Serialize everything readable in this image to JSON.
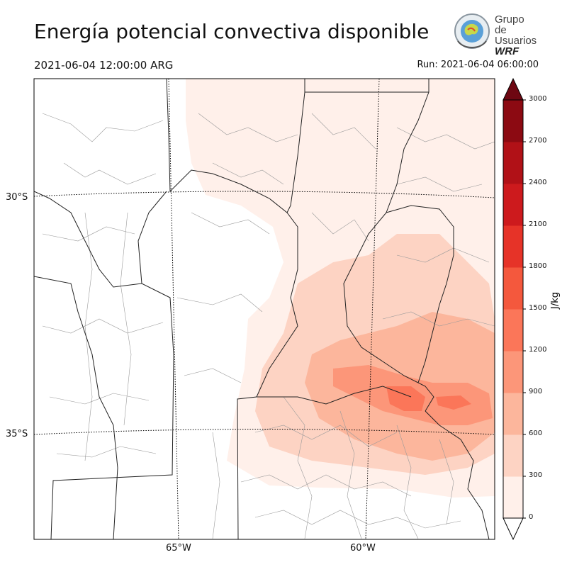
{
  "header": {
    "title": "Energía potencial convectiva disponible",
    "valid_time": "2021-06-04 12:00:00 ARG",
    "run_time": "Run: 2021-06-04 06:00:00"
  },
  "logo": {
    "line1": "Grupo de",
    "line2": "Usuarios",
    "line3": "WRF"
  },
  "map": {
    "lat_labels": [
      "30°S",
      "35°S"
    ],
    "lon_labels": [
      "65°W",
      "60°W"
    ]
  },
  "colorbar": {
    "label": "J/kg",
    "ticks": [
      "0",
      "300",
      "600",
      "900",
      "1200",
      "1500",
      "1800",
      "2100",
      "2400",
      "2700",
      "3000"
    ],
    "levels": [
      0,
      300,
      600,
      900,
      1200,
      1500,
      1800,
      2100,
      2400,
      2700,
      3000
    ],
    "colors": [
      "#fff0ea",
      "#fdd3c3",
      "#fcb69c",
      "#fc9679",
      "#fb7659",
      "#f4583d",
      "#e63328",
      "#cd1a1d",
      "#b11117",
      "#8c0a12"
    ],
    "extend_color": "#6e0712"
  }
}
